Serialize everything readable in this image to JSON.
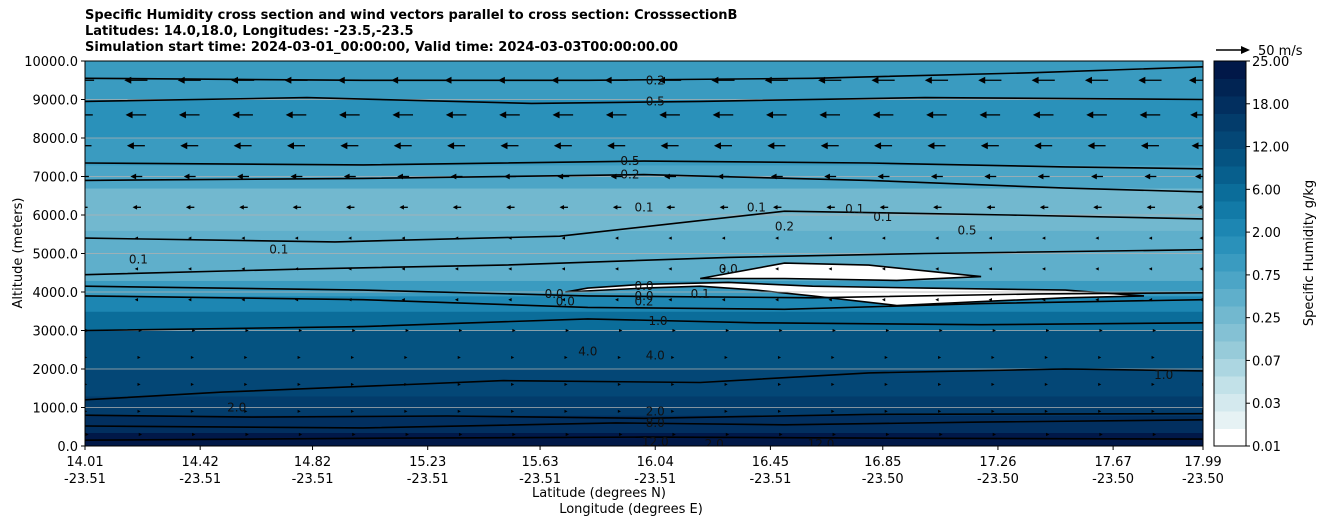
{
  "title_lines": [
    "Specific Humidity cross section and wind vectors parallel to cross section: CrosssectionB",
    "Latitudes: 14.0,18.0, Longitudes: -23.5,-23.5",
    "Simulation start time: 2024-03-01_00:00:00, Valid time: 2024-03-03T00:00:00.00"
  ],
  "chart_data": {
    "type": "heatmap",
    "title": "Specific Humidity cross section and wind vectors parallel to cross section: CrosssectionB",
    "ylabel": "Altitude (meters)",
    "xlabel_lines": [
      "Latitude (degrees N)",
      "Longitude (degrees E)"
    ],
    "ylim": [
      0,
      10000
    ],
    "xlim": [
      14.01,
      17.99
    ],
    "y_ticks": [
      "0.0",
      "1000.0",
      "2000.0",
      "3000.0",
      "4000.0",
      "5000.0",
      "6000.0",
      "7000.0",
      "8000.0",
      "9000.0",
      "10000.0"
    ],
    "x_ticks": [
      {
        "lat": "14.01",
        "lon": "-23.51"
      },
      {
        "lat": "14.42",
        "lon": "-23.51"
      },
      {
        "lat": "14.82",
        "lon": "-23.51"
      },
      {
        "lat": "15.23",
        "lon": "-23.51"
      },
      {
        "lat": "15.63",
        "lon": "-23.51"
      },
      {
        "lat": "16.04",
        "lon": "-23.51"
      },
      {
        "lat": "16.45",
        "lon": "-23.51"
      },
      {
        "lat": "16.85",
        "lon": "-23.50"
      },
      {
        "lat": "17.26",
        "lon": "-23.50"
      },
      {
        "lat": "17.67",
        "lon": "-23.50"
      },
      {
        "lat": "17.99",
        "lon": "-23.50"
      }
    ],
    "colorbar": {
      "label": "Specific Humidity g/kg",
      "tick_labels": [
        "0.01",
        "0.03",
        "0.07",
        "0.25",
        "0.75",
        "2.00",
        "6.00",
        "12.00",
        "18.00",
        "25.00"
      ],
      "colors": [
        "#ffffff",
        "#e6f2f4",
        "#d4e9ee",
        "#c2e1e8",
        "#acd6e1",
        "#97cbd9",
        "#84c1d4",
        "#72b8cf",
        "#5fafcb",
        "#4ca5c6",
        "#3a9bc0",
        "#2a91ba",
        "#1d86b2",
        "#127aa7",
        "#0b6d9a",
        "#075f8d",
        "#055381",
        "#044776",
        "#033c6b",
        "#022f5f",
        "#012453",
        "#011848"
      ]
    },
    "wind_key": {
      "label": "50 m/s",
      "value": 50
    },
    "contour_labels": [
      "0.2",
      "0.5",
      "0.5",
      "0.2",
      "0.1",
      "0.1",
      "0.1",
      "0.1",
      "0.2",
      "0.5",
      "0.1",
      "0.1",
      "0.0",
      "0.0",
      "0.0",
      "0.0",
      "0.2",
      "0.1",
      "0.0",
      "1.0",
      "4.0",
      "4.0",
      "2.0",
      "2.0",
      "8.0",
      "12.0",
      "12.0",
      "2.0",
      "1.0"
    ],
    "contours": [
      {
        "level": "12.0",
        "points": [
          [
            14.01,
            150
          ],
          [
            15.0,
            200
          ],
          [
            16.0,
            230
          ],
          [
            17.0,
            200
          ],
          [
            17.99,
            180
          ]
        ]
      },
      {
        "level": "8.0",
        "points": [
          [
            14.01,
            520
          ],
          [
            15.0,
            470
          ],
          [
            15.9,
            600
          ],
          [
            16.5,
            550
          ],
          [
            17.2,
            620
          ],
          [
            17.99,
            680
          ]
        ]
      },
      {
        "level": "4.0",
        "points": [
          [
            14.01,
            800
          ],
          [
            14.6,
            750
          ],
          [
            15.3,
            780
          ],
          [
            16.0,
            720
          ],
          [
            16.8,
            820
          ],
          [
            17.99,
            840
          ]
        ]
      },
      {
        "level": "2.0",
        "points": [
          [
            14.01,
            1200
          ],
          [
            14.5,
            1400
          ],
          [
            15.5,
            1700
          ],
          [
            16.2,
            1650
          ],
          [
            16.8,
            1900
          ],
          [
            17.5,
            2000
          ],
          [
            17.99,
            1950
          ]
        ]
      },
      {
        "level": "1.0",
        "points": [
          [
            14.01,
            3000
          ],
          [
            15.0,
            3100
          ],
          [
            15.8,
            3300
          ],
          [
            16.4,
            3200
          ],
          [
            17.2,
            3150
          ],
          [
            17.99,
            3200
          ]
        ]
      },
      {
        "level": "0.5",
        "points": [
          [
            14.01,
            3900
          ],
          [
            15.0,
            3800
          ],
          [
            15.8,
            3600
          ],
          [
            16.5,
            3550
          ],
          [
            17.2,
            3700
          ],
          [
            17.99,
            3800
          ]
        ]
      },
      {
        "level": "0.2",
        "points": [
          [
            14.01,
            4150
          ],
          [
            15.0,
            4050
          ],
          [
            15.8,
            3900
          ],
          [
            16.6,
            3850
          ],
          [
            17.4,
            3950
          ],
          [
            17.99,
            3980
          ]
        ]
      },
      {
        "level": "0.1",
        "points": [
          [
            14.01,
            4450
          ],
          [
            14.8,
            4600
          ],
          [
            15.5,
            4700
          ],
          [
            16.3,
            4900
          ],
          [
            17.0,
            5000
          ],
          [
            17.99,
            5100
          ]
        ]
      },
      {
        "level": "0.1",
        "points": [
          [
            14.01,
            5400
          ],
          [
            14.9,
            5300
          ],
          [
            15.7,
            5450
          ],
          [
            16.5,
            6100
          ],
          [
            17.3,
            6000
          ],
          [
            17.99,
            5900
          ]
        ]
      },
      {
        "level": "0.2",
        "points": [
          [
            14.01,
            6900
          ],
          [
            15.0,
            6950
          ],
          [
            16.0,
            7050
          ],
          [
            16.8,
            6900
          ],
          [
            17.5,
            6700
          ],
          [
            17.99,
            6600
          ]
        ]
      },
      {
        "level": "0.5",
        "points": [
          [
            14.01,
            7350
          ],
          [
            15.0,
            7300
          ],
          [
            16.0,
            7400
          ],
          [
            16.8,
            7350
          ],
          [
            17.5,
            7250
          ],
          [
            17.99,
            7200
          ]
        ]
      },
      {
        "level": "0.5",
        "points": [
          [
            14.01,
            8950
          ],
          [
            14.8,
            9050
          ],
          [
            15.6,
            8900
          ],
          [
            16.2,
            8950
          ],
          [
            17.0,
            9050
          ],
          [
            17.99,
            9000
          ]
        ]
      },
      {
        "level": "0.2",
        "points": [
          [
            14.01,
            9550
          ],
          [
            15.0,
            9500
          ],
          [
            15.8,
            9500
          ],
          [
            16.6,
            9550
          ],
          [
            17.4,
            9700
          ],
          [
            17.99,
            9850
          ]
        ]
      }
    ],
    "dry_regions": [
      {
        "level": "0.0",
        "points": [
          [
            15.72,
            4000
          ],
          [
            16.0,
            4100
          ],
          [
            16.2,
            4150
          ],
          [
            16.4,
            4050
          ],
          [
            16.6,
            3900
          ],
          [
            16.9,
            3650
          ],
          [
            17.2,
            3750
          ],
          [
            17.5,
            3850
          ],
          [
            17.78,
            3900
          ],
          [
            17.5,
            4050
          ],
          [
            17.0,
            4100
          ],
          [
            16.6,
            4150
          ],
          [
            16.3,
            4250
          ],
          [
            16.0,
            4200
          ],
          [
            15.8,
            4100
          ]
        ]
      },
      {
        "level": "0.0",
        "points": [
          [
            16.2,
            4350
          ],
          [
            16.5,
            4750
          ],
          [
            16.8,
            4700
          ],
          [
            17.2,
            4400
          ],
          [
            16.9,
            4300
          ],
          [
            16.5,
            4350
          ]
        ]
      }
    ],
    "wind_vectors": {
      "rows": [
        9500,
        8600,
        7800,
        7000,
        6200,
        5400,
        4600,
        3800,
        3000,
        2300,
        1600,
        900,
        300
      ],
      "u_ms": [
        -7,
        -6,
        -5,
        -3,
        -2,
        -1,
        -1,
        -1,
        1,
        0,
        0,
        0,
        1
      ],
      "x_positions": [
        14.01,
        14.2,
        14.39,
        14.58,
        14.77,
        14.96,
        15.15,
        15.34,
        15.53,
        15.72,
        15.91,
        16.1,
        16.29,
        16.48,
        16.67,
        16.86,
        17.05,
        17.24,
        17.43,
        17.62,
        17.81,
        17.99
      ]
    }
  }
}
